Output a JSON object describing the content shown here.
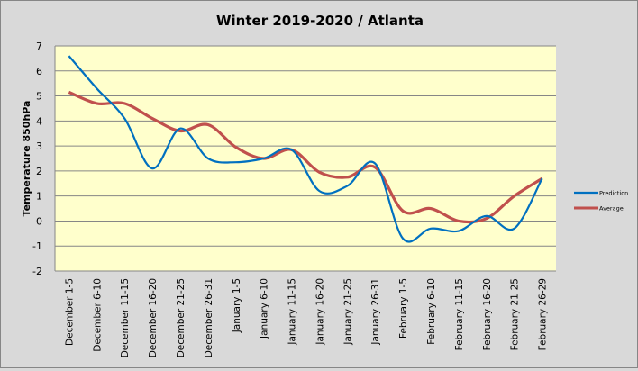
{
  "chart_data": {
    "type": "line",
    "title": "Winter 2019-2020 / Atlanta",
    "xlabel": "",
    "ylabel": "Temperature 850hPa",
    "ylim": [
      -2,
      7
    ],
    "yticks": [
      "7",
      "6",
      "5",
      "4",
      "3",
      "2",
      "1",
      "0",
      "-1",
      "-2"
    ],
    "grid": true,
    "legend_position": "right",
    "categories": [
      "December 1-5",
      "December 6-10",
      "December 11-15",
      "December 16-20",
      "December 21-25",
      "December 26-31",
      "January 1-5",
      "January 6-10",
      "January 11-15",
      "January 16-20",
      "January 21-25",
      "January 26-31",
      "February 1-5",
      "February 6-10",
      "February 11-15",
      "February 16-20",
      "February 21-25",
      "February 26-29"
    ],
    "series": [
      {
        "name": "Prediction",
        "color": "#0070c0",
        "values": [
          6.6,
          5.3,
          4.1,
          2.1,
          3.7,
          2.5,
          2.35,
          2.5,
          2.85,
          1.2,
          1.4,
          2.3,
          -0.7,
          -0.3,
          -0.4,
          0.2,
          -0.3,
          1.7
        ]
      },
      {
        "name": "Average",
        "color": "#c0504d",
        "values": [
          5.15,
          4.7,
          4.7,
          4.1,
          3.6,
          3.85,
          2.95,
          2.5,
          2.85,
          1.95,
          1.75,
          2.15,
          0.4,
          0.5,
          0.0,
          0.1,
          1.0,
          1.7
        ]
      }
    ],
    "plot_background": "#ffffcc"
  }
}
